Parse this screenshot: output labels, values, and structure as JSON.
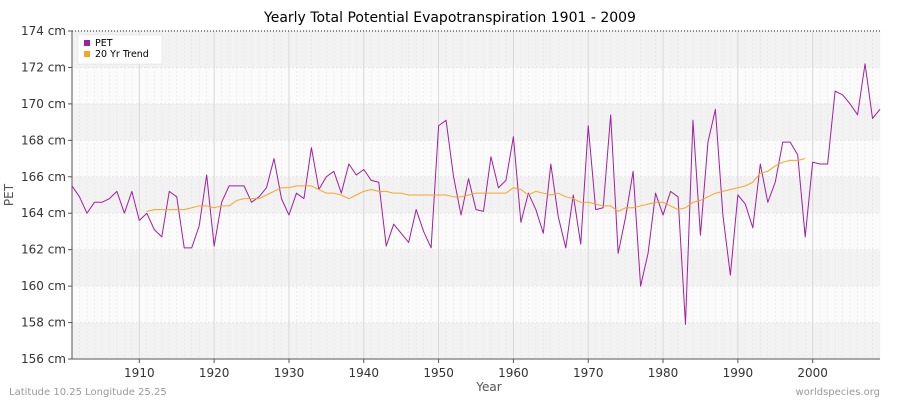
{
  "chart_data": {
    "type": "line",
    "title": "Yearly Total Potential Evapotranspiration 1901 - 2009",
    "xlabel": "Year",
    "ylabel": "PET",
    "xlim": [
      1901,
      2009
    ],
    "ylim": [
      156,
      174
    ],
    "x_ticks": [
      1910,
      1920,
      1930,
      1940,
      1950,
      1960,
      1970,
      1980,
      1990,
      2000
    ],
    "y_ticks": [
      156,
      158,
      160,
      162,
      164,
      166,
      168,
      170,
      172,
      174
    ],
    "y_tick_labels": [
      "156 cm",
      "158 cm",
      "160 cm",
      "162 cm",
      "164 cm",
      "166 cm",
      "168 cm",
      "170 cm",
      "172 cm",
      "174 cm"
    ],
    "grid": true,
    "legend_position": "top-left",
    "series": [
      {
        "name": "PET",
        "color": "#a020a0",
        "x_start": 1901,
        "values": [
          165.5,
          164.9,
          164.0,
          164.6,
          164.6,
          164.8,
          165.2,
          164.0,
          165.2,
          163.6,
          164.0,
          163.1,
          162.7,
          165.2,
          164.9,
          162.1,
          162.1,
          163.3,
          166.1,
          162.2,
          164.6,
          165.5,
          165.5,
          165.5,
          164.6,
          164.9,
          165.4,
          167.0,
          164.8,
          163.9,
          165.1,
          164.8,
          167.6,
          165.3,
          166.0,
          166.3,
          165.1,
          166.7,
          166.1,
          166.4,
          165.8,
          165.7,
          162.2,
          163.4,
          162.9,
          162.4,
          164.2,
          163.0,
          162.1,
          168.8,
          169.1,
          166.0,
          163.9,
          165.9,
          164.2,
          164.1,
          167.1,
          165.4,
          165.8,
          168.2,
          163.5,
          165.1,
          164.2,
          162.9,
          166.7,
          163.8,
          162.1,
          165.0,
          162.3,
          168.8,
          164.2,
          164.3,
          169.4,
          161.8,
          163.8,
          166.3,
          160.0,
          161.8,
          165.1,
          163.9,
          165.2,
          164.9,
          157.9,
          169.1,
          162.8,
          167.9,
          169.7,
          163.9,
          160.6,
          165.0,
          164.5,
          163.2,
          166.7,
          164.6,
          165.7,
          167.9,
          167.9,
          167.2,
          162.7,
          166.8,
          166.7,
          166.7,
          170.7,
          170.5,
          170.0,
          169.4,
          172.2,
          169.2,
          169.7
        ]
      },
      {
        "name": "20 Yr Trend",
        "color": "#f5a623",
        "x_start": 1911,
        "values": [
          164.1,
          164.2,
          164.2,
          164.2,
          164.2,
          164.2,
          164.3,
          164.4,
          164.4,
          164.3,
          164.4,
          164.4,
          164.7,
          164.8,
          164.8,
          164.8,
          165.0,
          165.2,
          165.4,
          165.4,
          165.5,
          165.5,
          165.5,
          165.3,
          165.1,
          165.1,
          165.0,
          164.8,
          165.0,
          165.2,
          165.3,
          165.2,
          165.2,
          165.1,
          165.1,
          165.0,
          165.0,
          165.0,
          165.0,
          165.0,
          165.0,
          164.9,
          164.9,
          165.0,
          165.1,
          165.1,
          165.1,
          165.1,
          165.1,
          165.4,
          165.3,
          165.0,
          165.2,
          165.1,
          165.0,
          165.1,
          164.9,
          164.8,
          164.6,
          164.6,
          164.5,
          164.4,
          164.4,
          164.1,
          164.3,
          164.3,
          164.4,
          164.5,
          164.6,
          164.6,
          164.4,
          164.2,
          164.3,
          164.6,
          164.7,
          164.9,
          165.1,
          165.2,
          165.3,
          165.4,
          165.5,
          165.7,
          166.2,
          166.3,
          166.6,
          166.8,
          166.9,
          166.9,
          167.0
        ]
      }
    ]
  },
  "footer": {
    "left": "Latitude 10.25 Longitude 25.25",
    "right": "worldspecies.org"
  }
}
